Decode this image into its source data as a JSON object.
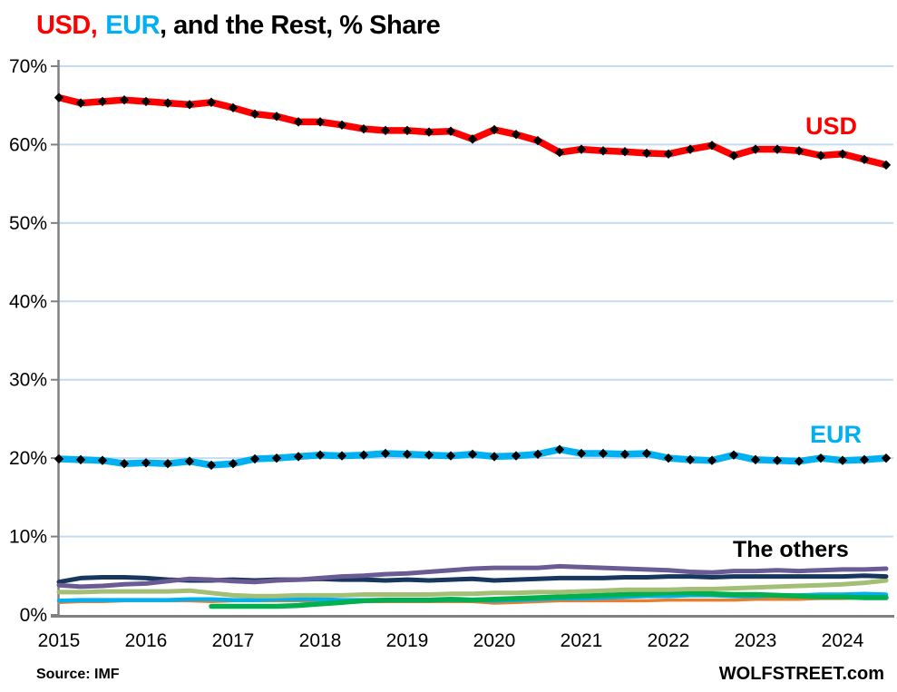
{
  "page": {
    "title": {
      "part_usd": "USD,",
      "part_eur": "EUR",
      "part_rest": ", and the Rest, % Share"
    },
    "footer": {
      "source": "Source: IMF",
      "brand": "WOLFSTREET.com"
    }
  },
  "annotations": {
    "usd_label": "USD",
    "eur_label": "EUR",
    "others_label": "The others"
  },
  "colors": {
    "usd_red": "#FF0000",
    "eur_blue": "#00B0F0",
    "grid_blue": "#C5DBF1",
    "axis_gray": "#808080",
    "marker_black": "#000000"
  },
  "chart_data": {
    "type": "line",
    "title": "USD, EUR, and the Rest, % Share",
    "x_unit": "quarterly values from 2015 Q1 to 2024 Q3",
    "x_tick_labels": [
      "2015",
      "2016",
      "2017",
      "2018",
      "2019",
      "2020",
      "2021",
      "2022",
      "2023",
      "2024"
    ],
    "y_tick_labels": [
      "0%",
      "10%",
      "20%",
      "30%",
      "40%",
      "50%",
      "60%",
      "70%"
    ],
    "ylim": [
      0,
      70
    ],
    "grid": "horizontal gridlines every 10%",
    "legend": "inline text labels: USD (red), EUR (blue), The others (black)",
    "series": [
      {
        "name": "USD",
        "color": "#FF0000",
        "line_width": 7.5,
        "markers": "black diamonds",
        "values": [
          66.0,
          65.3,
          65.5,
          65.7,
          65.5,
          65.3,
          65.1,
          65.4,
          64.7,
          63.9,
          63.6,
          62.9,
          62.9,
          62.5,
          62.0,
          61.8,
          61.8,
          61.6,
          61.7,
          60.7,
          61.9,
          61.3,
          60.5,
          59.0,
          59.4,
          59.2,
          59.1,
          58.9,
          58.8,
          59.4,
          59.9,
          58.6,
          59.4,
          59.4,
          59.2,
          58.6,
          58.8,
          58.1,
          57.4
        ]
      },
      {
        "name": "EUR",
        "color": "#00B0F0",
        "line_width": 7.5,
        "markers": "black diamonds",
        "values": [
          19.9,
          19.8,
          19.7,
          19.3,
          19.4,
          19.3,
          19.6,
          19.1,
          19.3,
          19.9,
          20.0,
          20.2,
          20.4,
          20.3,
          20.4,
          20.6,
          20.5,
          20.4,
          20.3,
          20.5,
          20.2,
          20.3,
          20.5,
          21.1,
          20.6,
          20.6,
          20.5,
          20.6,
          20.0,
          19.8,
          19.7,
          20.4,
          19.8,
          19.7,
          19.6,
          20.0,
          19.7,
          19.8,
          20.0
        ]
      },
      {
        "name": "others-navy",
        "color": "#17375E",
        "line_width": 5,
        "markers": "none",
        "values": [
          4.2,
          4.7,
          4.8,
          4.8,
          4.7,
          4.5,
          4.4,
          4.4,
          4.5,
          4.4,
          4.5,
          4.5,
          4.6,
          4.5,
          4.5,
          4.4,
          4.5,
          4.4,
          4.5,
          4.6,
          4.4,
          4.5,
          4.6,
          4.7,
          4.7,
          4.7,
          4.8,
          4.8,
          4.9,
          4.9,
          4.8,
          4.9,
          4.9,
          4.9,
          4.9,
          4.9,
          4.9,
          5.0,
          4.9
        ]
      },
      {
        "name": "others-purple",
        "color": "#6B5B95",
        "line_width": 5,
        "markers": "none",
        "values": [
          3.8,
          3.6,
          3.7,
          3.9,
          4.0,
          4.3,
          4.6,
          4.5,
          4.3,
          4.2,
          4.4,
          4.5,
          4.7,
          4.9,
          5.0,
          5.2,
          5.3,
          5.5,
          5.7,
          5.9,
          6.0,
          6.0,
          6.0,
          6.2,
          6.1,
          6.0,
          5.9,
          5.8,
          5.7,
          5.5,
          5.4,
          5.6,
          5.6,
          5.7,
          5.6,
          5.7,
          5.8,
          5.8,
          5.9
        ]
      },
      {
        "name": "others-olive-green",
        "color": "#A3BF75",
        "line_width": 5,
        "markers": "none",
        "values": [
          2.9,
          2.9,
          3.0,
          3.0,
          3.0,
          3.0,
          3.1,
          2.8,
          2.5,
          2.4,
          2.4,
          2.5,
          2.5,
          2.5,
          2.6,
          2.6,
          2.6,
          2.6,
          2.7,
          2.7,
          2.8,
          2.8,
          2.9,
          2.9,
          3.0,
          3.1,
          3.2,
          3.2,
          3.2,
          3.3,
          3.3,
          3.4,
          3.5,
          3.6,
          3.7,
          3.8,
          3.9,
          4.1,
          4.4
        ]
      },
      {
        "name": "others-sky-blue",
        "color": "#00B0F0",
        "line_width": 4.5,
        "markers": "none",
        "values": [
          1.8,
          1.9,
          1.9,
          1.9,
          1.9,
          1.9,
          2.0,
          2.0,
          1.9,
          1.9,
          2.0,
          2.0,
          2.0,
          1.9,
          1.9,
          1.9,
          1.9,
          1.9,
          1.9,
          1.9,
          1.8,
          1.9,
          2.0,
          2.1,
          2.1,
          2.2,
          2.3,
          2.4,
          2.4,
          2.5,
          2.5,
          2.4,
          2.4,
          2.5,
          2.5,
          2.6,
          2.6,
          2.7,
          2.6
        ]
      },
      {
        "name": "others-orange",
        "color": "#E67E30",
        "line_width": 3.5,
        "markers": "none",
        "values": [
          1.6,
          1.7,
          1.7,
          1.8,
          1.8,
          1.8,
          1.8,
          1.7,
          1.8,
          1.8,
          1.8,
          1.8,
          1.7,
          1.7,
          1.7,
          1.7,
          1.7,
          1.7,
          1.7,
          1.7,
          1.5,
          1.6,
          1.7,
          1.8,
          1.8,
          1.8,
          1.8,
          1.8,
          1.9,
          1.9,
          1.9,
          1.9,
          2.0,
          2.0,
          2.0,
          2.1,
          2.1,
          2.2,
          2.2
        ]
      },
      {
        "name": "others-green",
        "color": "#00B050",
        "line_width": 5.5,
        "markers": "none",
        "values": [
          null,
          null,
          null,
          null,
          null,
          null,
          null,
          1.1,
          1.1,
          1.1,
          1.1,
          1.2,
          1.4,
          1.6,
          1.8,
          1.9,
          1.9,
          1.9,
          2.0,
          1.9,
          2.0,
          2.1,
          2.2,
          2.3,
          2.4,
          2.5,
          2.6,
          2.7,
          2.8,
          2.8,
          2.7,
          2.6,
          2.6,
          2.5,
          2.4,
          2.3,
          2.3,
          2.2,
          2.2
        ]
      }
    ]
  }
}
